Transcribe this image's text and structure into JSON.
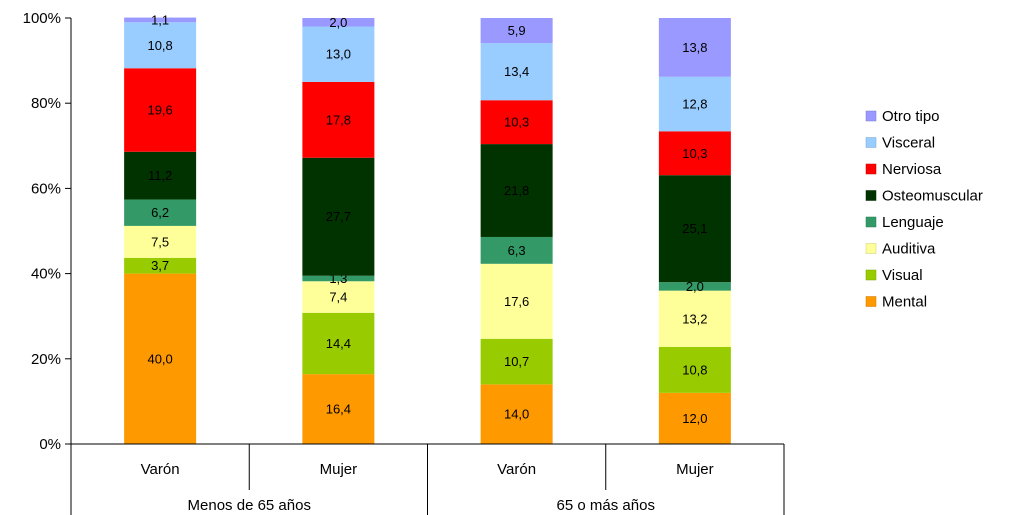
{
  "chart_data": {
    "type": "bar",
    "stacked": true,
    "percent": true,
    "groups": [
      {
        "label": "Menos de 65 años",
        "categories": [
          "Varón",
          "Mujer"
        ]
      },
      {
        "label": "65 o más años",
        "categories": [
          "Varón",
          "Mujer"
        ]
      }
    ],
    "y_ticks": [
      "0%",
      "20%",
      "40%",
      "60%",
      "80%",
      "100%"
    ],
    "ylim": [
      0,
      100
    ],
    "grid": false,
    "legend_position": "right",
    "series": [
      {
        "name": "Mental",
        "color": "#FF9900",
        "values": [
          40.0,
          16.4,
          14.0,
          12.0
        ],
        "labels": [
          "40,0",
          "16,4",
          "14,0",
          "12,0"
        ]
      },
      {
        "name": "Visual",
        "color": "#99CC00",
        "values": [
          3.7,
          14.4,
          10.7,
          10.8
        ],
        "labels": [
          "3,7",
          "14,4",
          "10,7",
          "10,8"
        ]
      },
      {
        "name": "Auditiva",
        "color": "#FFFF99",
        "values": [
          7.5,
          7.4,
          17.6,
          13.2
        ],
        "labels": [
          "7,5",
          "7,4",
          "17,6",
          "13,2"
        ]
      },
      {
        "name": "Lenguaje",
        "color": "#339966",
        "values": [
          6.2,
          1.3,
          6.3,
          2.0
        ],
        "labels": [
          "6,2",
          "1,3",
          "6,3",
          "2,0"
        ]
      },
      {
        "name": "Osteomuscular",
        "color": "#003300",
        "values": [
          11.2,
          27.7,
          21.8,
          25.1
        ],
        "labels": [
          "11,2",
          "27,7",
          "21,8",
          "25,1"
        ]
      },
      {
        "name": "Nerviosa",
        "color": "#FF0000",
        "values": [
          19.6,
          17.8,
          10.3,
          10.3
        ],
        "labels": [
          "19,6",
          "17,8",
          "10,3",
          "10,3"
        ]
      },
      {
        "name": "Visceral",
        "color": "#99CCFF",
        "values": [
          10.8,
          13.0,
          13.4,
          12.8
        ],
        "labels": [
          "10,8",
          "13,0",
          "13,4",
          "12,8"
        ]
      },
      {
        "name": "Otro tipo",
        "color": "#9999FF",
        "values": [
          1.1,
          2.0,
          5.9,
          13.8
        ],
        "labels": [
          "1,1",
          "2,0",
          "5,9",
          "13,8"
        ]
      }
    ]
  }
}
